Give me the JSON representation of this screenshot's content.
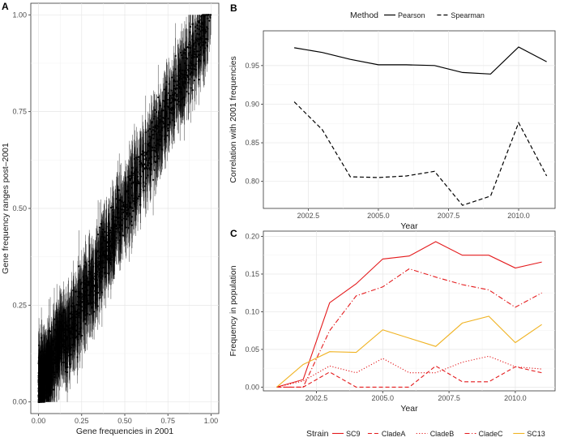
{
  "panels": {
    "A": {
      "letter": "A"
    },
    "B": {
      "letter": "B"
    },
    "C": {
      "letter": "C"
    }
  },
  "chart_data": [
    {
      "id": "A",
      "type": "scatter",
      "title": "",
      "xlabel": "Gene frequencies in 2001",
      "ylabel": "Gene frequency ranges post–2001",
      "xlim": [
        0,
        1
      ],
      "ylim": [
        0,
        1
      ],
      "xticks": [
        0,
        0.25,
        0.5,
        0.75,
        1
      ],
      "xtick_labels": [
        "0.00",
        "0.25",
        "0.50",
        "0.75",
        "1.00"
      ],
      "yticks": [
        0,
        0.25,
        0.5,
        0.75,
        1
      ],
      "ytick_labels": [
        "0.00",
        "0.25",
        "0.50",
        "0.75",
        "1.00"
      ],
      "grid": true,
      "description_points": "approx. 2000 genes; y approximately equals x with vertical range bars of about ±0.08",
      "point_color": "#000000",
      "trend": {
        "x": [
          0,
          0.1,
          0.25,
          0.5,
          0.75,
          0.9,
          1.0
        ],
        "y": [
          0.05,
          0.12,
          0.25,
          0.5,
          0.75,
          0.9,
          0.95
        ]
      }
    },
    {
      "id": "B",
      "type": "line",
      "xlabel": "Year",
      "ylabel": "Correlation with 2001 frequencies",
      "xlim": [
        2000.9,
        2011.3
      ],
      "ylim": [
        0.765,
        0.995
      ],
      "xticks": [
        2002.5,
        2005.0,
        2007.5,
        2010.0
      ],
      "xtick_labels": [
        "2002.5",
        "2005.0",
        "2007.5",
        "2010.0"
      ],
      "yticks": [
        0.8,
        0.85,
        0.9,
        0.95
      ],
      "ytick_labels": [
        "0.80",
        "0.85",
        "0.90",
        "0.95"
      ],
      "grid": true,
      "legend": {
        "title": "Method",
        "position": "top"
      },
      "x": [
        2002,
        2003,
        2004,
        2005,
        2006,
        2007,
        2008,
        2009,
        2010,
        2011
      ],
      "series": [
        {
          "name": "Pearson",
          "dash": "solid",
          "color": "#000000",
          "values": [
            0.973,
            0.967,
            0.958,
            0.951,
            0.951,
            0.95,
            0.941,
            0.939,
            0.974,
            0.955
          ]
        },
        {
          "name": "Spearman",
          "dash": "dashed",
          "color": "#000000",
          "values": [
            0.903,
            0.867,
            0.806,
            0.805,
            0.807,
            0.813,
            0.769,
            0.781,
            0.876,
            0.807
          ]
        }
      ]
    },
    {
      "id": "C",
      "type": "line",
      "xlabel": "Year",
      "ylabel": "Frequency in population",
      "xlim": [
        2000.5,
        2011.5
      ],
      "ylim": [
        -0.005,
        0.207
      ],
      "xticks": [
        2002.5,
        2005.0,
        2007.5,
        2010.0
      ],
      "xtick_labels": [
        "2002.5",
        "2005.0",
        "2007.5",
        "2010.0"
      ],
      "yticks": [
        0.0,
        0.05,
        0.1,
        0.15,
        0.2
      ],
      "ytick_labels": [
        "0.00",
        "0.05",
        "0.10",
        "0.15",
        "0.20"
      ],
      "grid": true,
      "legend": {
        "title": "Strain",
        "position": "bottom"
      },
      "x": [
        2001,
        2002,
        2003,
        2004,
        2005,
        2006,
        2007,
        2008,
        2009,
        2010,
        2011
      ],
      "series": [
        {
          "name": "SC9",
          "dash": "solid",
          "color": "#e41a1c",
          "values": [
            0.0,
            0.01,
            0.112,
            0.137,
            0.17,
            0.174,
            0.193,
            0.175,
            0.175,
            0.158,
            0.166
          ]
        },
        {
          "name": "CladeA",
          "dash": "dashed",
          "color": "#e41a1c",
          "values": [
            0.0,
            0.0,
            0.02,
            0.0,
            0.0,
            0.0,
            0.028,
            0.007,
            0.007,
            0.027,
            0.019
          ]
        },
        {
          "name": "CladeB",
          "dash": "dotted",
          "color": "#e41a1c",
          "values": [
            0.0,
            0.008,
            0.028,
            0.019,
            0.038,
            0.019,
            0.019,
            0.033,
            0.041,
            0.027,
            0.024
          ]
        },
        {
          "name": "CladeC",
          "dash": "dashdot",
          "color": "#e41a1c",
          "values": [
            0.0,
            0.0,
            0.075,
            0.121,
            0.133,
            0.157,
            0.146,
            0.136,
            0.129,
            0.106,
            0.125
          ]
        },
        {
          "name": "SC13",
          "dash": "solid",
          "color": "#f0b323",
          "values": [
            0.0,
            0.03,
            0.047,
            0.046,
            0.076,
            0.065,
            0.054,
            0.085,
            0.094,
            0.059,
            0.083
          ]
        }
      ]
    }
  ]
}
